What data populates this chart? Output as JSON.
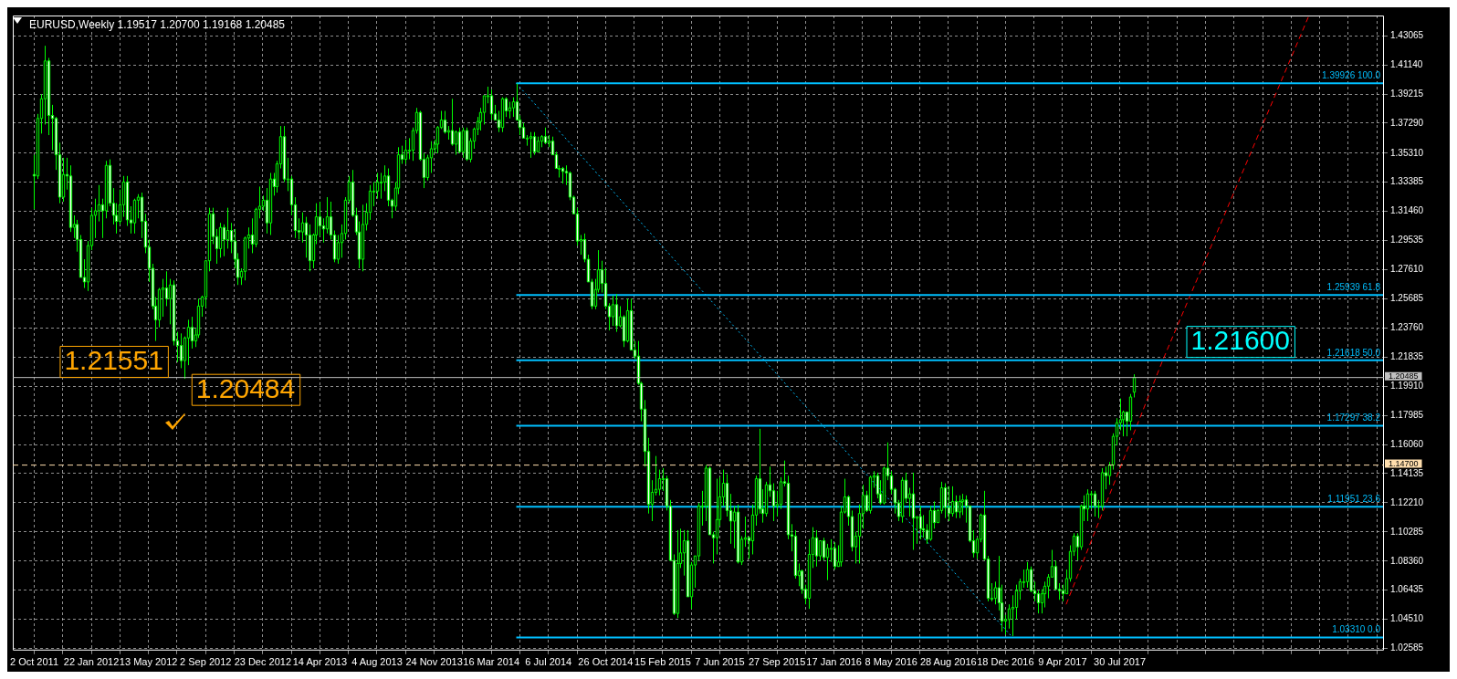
{
  "chart_data": {
    "type": "candlestick",
    "title": "EURUSD,Weekly 1.19517 1.20700 1.19168 1.20485",
    "xlim": [
      "2011-08-21",
      "2018-12-30"
    ],
    "ylim": [
      1.0245,
      1.444
    ],
    "yticks": [
      {
        "value": 1.02585,
        "label": "1.02585"
      },
      {
        "value": 1.0451,
        "label": "1.04510"
      },
      {
        "value": 1.06435,
        "label": "1.06435"
      },
      {
        "value": 1.0836,
        "label": "1.08360"
      },
      {
        "value": 1.10285,
        "label": "1.10285"
      },
      {
        "value": 1.1221,
        "label": "1.12210"
      },
      {
        "value": 1.14135,
        "label": "1.14135"
      },
      {
        "value": 1.1606,
        "label": "1.16060"
      },
      {
        "value": 1.17985,
        "label": "1.17985"
      },
      {
        "value": 1.1991,
        "label": "1.19910"
      },
      {
        "value": 1.21835,
        "label": "1.21835"
      },
      {
        "value": 1.2376,
        "label": "1.23760"
      },
      {
        "value": 1.25685,
        "label": "1.25685"
      },
      {
        "value": 1.2761,
        "label": "1.27610"
      },
      {
        "value": 1.29535,
        "label": "1.29535"
      },
      {
        "value": 1.3146,
        "label": "1.31460"
      },
      {
        "value": 1.33385,
        "label": "1.33385"
      },
      {
        "value": 1.3531,
        "label": "1.35310"
      },
      {
        "value": 1.3729,
        "label": "1.37290"
      },
      {
        "value": 1.39215,
        "label": "1.39215"
      },
      {
        "value": 1.4114,
        "label": "1.41140"
      },
      {
        "value": 1.43065,
        "label": "1.43065"
      }
    ],
    "xticks": [
      {
        "value": "2011-10-02",
        "label": "2 Oct 2011"
      },
      {
        "value": "2011-11-27",
        "label": null
      },
      {
        "value": "2012-01-22",
        "label": "22 Jan 2012"
      },
      {
        "value": "2012-03-18",
        "label": null
      },
      {
        "value": "2012-05-13",
        "label": "13 May 2012"
      },
      {
        "value": "2012-07-08",
        "label": null
      },
      {
        "value": "2012-09-02",
        "label": "2 Sep 2012"
      },
      {
        "value": "2012-10-28",
        "label": null
      },
      {
        "value": "2012-12-23",
        "label": "23 Dec 2012"
      },
      {
        "value": "2013-02-17",
        "label": null
      },
      {
        "value": "2013-04-14",
        "label": "14 Apr 2013"
      },
      {
        "value": "2013-06-09",
        "label": null
      },
      {
        "value": "2013-08-04",
        "label": "4 Aug 2013"
      },
      {
        "value": "2013-09-29",
        "label": null
      },
      {
        "value": "2013-11-24",
        "label": "24 Nov 2013"
      },
      {
        "value": "2014-01-19",
        "label": null
      },
      {
        "value": "2014-03-16",
        "label": "16 Mar 2014"
      },
      {
        "value": "2014-05-11",
        "label": null
      },
      {
        "value": "2014-07-06",
        "label": "6 Jul 2014"
      },
      {
        "value": "2014-08-31",
        "label": null
      },
      {
        "value": "2014-10-26",
        "label": "26 Oct 2014"
      },
      {
        "value": "2014-12-21",
        "label": null
      },
      {
        "value": "2015-02-15",
        "label": "15 Feb 2015"
      },
      {
        "value": "2015-04-12",
        "label": null
      },
      {
        "value": "2015-06-07",
        "label": "7 Jun 2015"
      },
      {
        "value": "2015-08-02",
        "label": null
      },
      {
        "value": "2015-09-27",
        "label": "27 Sep 2015"
      },
      {
        "value": "2015-11-22",
        "label": null
      },
      {
        "value": "2016-01-17",
        "label": "17 Jan 2016"
      },
      {
        "value": "2016-03-13",
        "label": null
      },
      {
        "value": "2016-05-08",
        "label": "8 May 2016"
      },
      {
        "value": "2016-07-03",
        "label": null
      },
      {
        "value": "2016-08-28",
        "label": "28 Aug 2016"
      },
      {
        "value": "2016-10-23",
        "label": null
      },
      {
        "value": "2016-12-18",
        "label": "18 Dec 2016"
      },
      {
        "value": "2017-02-12",
        "label": null
      },
      {
        "value": "2017-04-09",
        "label": "9 Apr 2017"
      },
      {
        "value": "2017-06-04",
        "label": null
      },
      {
        "value": "2017-07-30",
        "label": "30 Jul 2017"
      },
      {
        "value": "2017-09-24",
        "label": null
      },
      {
        "value": "2017-11-19",
        "label": null
      },
      {
        "value": "2018-01-14",
        "label": null
      },
      {
        "value": "2018-03-11",
        "label": null
      },
      {
        "value": "2018-05-06",
        "label": null
      },
      {
        "value": "2018-07-01",
        "label": null
      },
      {
        "value": "2018-08-26",
        "label": null
      },
      {
        "value": "2018-10-21",
        "label": null
      },
      {
        "value": "2018-12-16",
        "label": null
      }
    ],
    "grid": true,
    "x": [
      "2011-10-02",
      "2011-10-09",
      "2011-10-16",
      "2011-10-23",
      "2011-10-30",
      "2011-11-06",
      "2011-11-13",
      "2011-11-20",
      "2011-11-27",
      "2011-12-04",
      "2011-12-11",
      "2011-12-18",
      "2011-12-25",
      "2012-01-01",
      "2012-01-08",
      "2012-01-15",
      "2012-01-22",
      "2012-01-29",
      "2012-02-05",
      "2012-02-12",
      "2012-02-19",
      "2012-02-26",
      "2012-03-04",
      "2012-03-11",
      "2012-03-18",
      "2012-03-25",
      "2012-04-01",
      "2012-04-08",
      "2012-04-15",
      "2012-04-22",
      "2012-04-29",
      "2012-05-06",
      "2012-05-13",
      "2012-05-20",
      "2012-05-27",
      "2012-06-03",
      "2012-06-10",
      "2012-06-17",
      "2012-06-24",
      "2012-07-01",
      "2012-07-08",
      "2012-07-15",
      "2012-07-22",
      "2012-07-29",
      "2012-08-05",
      "2012-08-12",
      "2012-08-19",
      "2012-08-26",
      "2012-09-02",
      "2012-09-09",
      "2012-09-16",
      "2012-09-23",
      "2012-09-30",
      "2012-10-07",
      "2012-10-14",
      "2012-10-21",
      "2012-10-28",
      "2012-11-04",
      "2012-11-11",
      "2012-11-18",
      "2012-11-25",
      "2012-12-02",
      "2012-12-09",
      "2012-12-16",
      "2012-12-23",
      "2012-12-30",
      "2013-01-06",
      "2013-01-13",
      "2013-01-20",
      "2013-01-27",
      "2013-02-03",
      "2013-02-10",
      "2013-02-17",
      "2013-02-24",
      "2013-03-03",
      "2013-03-10",
      "2013-03-17",
      "2013-03-24",
      "2013-03-31",
      "2013-04-07",
      "2013-04-14",
      "2013-04-21",
      "2013-04-28",
      "2013-05-05",
      "2013-05-12",
      "2013-05-19",
      "2013-05-26",
      "2013-06-02",
      "2013-06-09",
      "2013-06-16",
      "2013-06-23",
      "2013-06-30",
      "2013-07-07",
      "2013-07-14",
      "2013-07-21",
      "2013-07-28",
      "2013-08-04",
      "2013-08-11",
      "2013-08-18",
      "2013-08-25",
      "2013-09-01",
      "2013-09-08",
      "2013-09-15",
      "2013-09-22",
      "2013-09-29",
      "2013-10-06",
      "2013-10-13",
      "2013-10-20",
      "2013-10-27",
      "2013-11-03",
      "2013-11-10",
      "2013-11-17",
      "2013-11-24",
      "2013-12-01",
      "2013-12-08",
      "2013-12-15",
      "2013-12-22",
      "2013-12-29",
      "2014-01-05",
      "2014-01-12",
      "2014-01-19",
      "2014-01-26",
      "2014-02-02",
      "2014-02-09",
      "2014-02-16",
      "2014-02-23",
      "2014-03-02",
      "2014-03-09",
      "2014-03-16",
      "2014-03-23",
      "2014-03-30",
      "2014-04-06",
      "2014-04-13",
      "2014-04-20",
      "2014-04-27",
      "2014-05-04",
      "2014-05-11",
      "2014-05-18",
      "2014-05-25",
      "2014-06-01",
      "2014-06-08",
      "2014-06-15",
      "2014-06-22",
      "2014-06-29",
      "2014-07-06",
      "2014-07-13",
      "2014-07-20",
      "2014-07-27",
      "2014-08-03",
      "2014-08-10",
      "2014-08-17",
      "2014-08-24",
      "2014-08-31",
      "2014-09-07",
      "2014-09-14",
      "2014-09-21",
      "2014-09-28",
      "2014-10-05",
      "2014-10-12",
      "2014-10-19",
      "2014-10-26",
      "2014-11-02",
      "2014-11-09",
      "2014-11-16",
      "2014-11-23",
      "2014-11-30",
      "2014-12-07",
      "2014-12-14",
      "2014-12-21",
      "2014-12-28",
      "2015-01-04",
      "2015-01-11",
      "2015-01-18",
      "2015-01-25",
      "2015-02-01",
      "2015-02-08",
      "2015-02-15",
      "2015-02-22",
      "2015-03-01",
      "2015-03-08",
      "2015-03-15",
      "2015-03-22",
      "2015-03-29",
      "2015-04-05",
      "2015-04-12",
      "2015-04-19",
      "2015-04-26",
      "2015-05-03",
      "2015-05-10",
      "2015-05-17",
      "2015-05-24",
      "2015-05-31",
      "2015-06-07",
      "2015-06-14",
      "2015-06-21",
      "2015-06-28",
      "2015-07-05",
      "2015-07-12",
      "2015-07-19",
      "2015-07-26",
      "2015-08-02",
      "2015-08-09",
      "2015-08-16",
      "2015-08-23",
      "2015-08-30",
      "2015-09-06",
      "2015-09-13",
      "2015-09-20",
      "2015-09-27",
      "2015-10-04",
      "2015-10-11",
      "2015-10-18",
      "2015-10-25",
      "2015-11-01",
      "2015-11-08",
      "2015-11-15",
      "2015-11-22",
      "2015-11-29",
      "2015-12-06",
      "2015-12-13",
      "2015-12-20",
      "2015-12-27",
      "2016-01-03",
      "2016-01-10",
      "2016-01-17",
      "2016-01-24",
      "2016-01-31",
      "2016-02-07",
      "2016-02-14",
      "2016-02-21",
      "2016-02-28",
      "2016-03-06",
      "2016-03-13",
      "2016-03-20",
      "2016-03-27",
      "2016-04-03",
      "2016-04-10",
      "2016-04-17",
      "2016-04-24",
      "2016-05-01",
      "2016-05-08",
      "2016-05-15",
      "2016-05-22",
      "2016-05-29",
      "2016-06-05",
      "2016-06-12",
      "2016-06-19",
      "2016-06-26",
      "2016-07-03",
      "2016-07-10",
      "2016-07-17",
      "2016-07-24",
      "2016-07-31",
      "2016-08-07",
      "2016-08-14",
      "2016-08-21",
      "2016-08-28",
      "2016-09-04",
      "2016-09-11",
      "2016-09-18",
      "2016-09-25",
      "2016-10-02",
      "2016-10-09",
      "2016-10-16",
      "2016-10-23",
      "2016-10-30",
      "2016-11-06",
      "2016-11-13",
      "2016-11-20",
      "2016-11-27",
      "2016-12-04",
      "2016-12-11",
      "2016-12-18",
      "2016-12-25",
      "2017-01-01",
      "2017-01-08",
      "2017-01-15",
      "2017-01-22",
      "2017-01-29",
      "2017-02-05",
      "2017-02-12",
      "2017-02-19",
      "2017-02-26",
      "2017-03-05",
      "2017-03-12",
      "2017-03-19",
      "2017-03-26",
      "2017-04-02",
      "2017-04-09",
      "2017-04-16",
      "2017-04-23",
      "2017-04-30",
      "2017-05-07",
      "2017-05-14",
      "2017-05-21",
      "2017-05-28",
      "2017-06-04",
      "2017-06-11",
      "2017-06-18",
      "2017-06-25",
      "2017-07-02",
      "2017-07-09",
      "2017-07-16",
      "2017-07-23",
      "2017-07-30",
      "2017-08-06",
      "2017-08-13",
      "2017-08-20",
      "2017-08-27"
    ],
    "ohlc": [
      [
        1.339,
        1.352,
        1.316,
        1.338
      ],
      [
        1.338,
        1.379,
        1.336,
        1.376
      ],
      [
        1.376,
        1.392,
        1.366,
        1.389
      ],
      [
        1.389,
        1.424,
        1.372,
        1.414
      ],
      [
        1.414,
        1.416,
        1.365,
        1.378
      ],
      [
        1.378,
        1.385,
        1.355,
        1.376
      ],
      [
        1.376,
        1.377,
        1.342,
        1.352
      ],
      [
        1.352,
        1.36,
        1.32,
        1.324
      ],
      [
        1.324,
        1.35,
        1.321,
        1.339
      ],
      [
        1.339,
        1.35,
        1.329,
        1.338
      ],
      [
        1.338,
        1.345,
        1.301,
        1.304
      ],
      [
        1.304,
        1.312,
        1.297,
        1.306
      ],
      [
        1.306,
        1.309,
        1.288,
        1.296
      ],
      [
        1.296,
        1.299,
        1.271,
        1.271
      ],
      [
        1.271,
        1.283,
        1.264,
        1.268
      ],
      [
        1.268,
        1.295,
        1.262,
        1.292
      ],
      [
        1.292,
        1.317,
        1.289,
        1.312
      ],
      [
        1.312,
        1.323,
        1.297,
        1.315
      ],
      [
        1.315,
        1.332,
        1.308,
        1.319
      ],
      [
        1.319,
        1.323,
        1.297,
        1.315
      ],
      [
        1.315,
        1.348,
        1.31,
        1.345
      ],
      [
        1.345,
        1.349,
        1.318,
        1.32
      ],
      [
        1.32,
        1.33,
        1.306,
        1.312
      ],
      [
        1.312,
        1.32,
        1.3,
        1.308
      ],
      [
        1.308,
        1.329,
        1.306,
        1.319
      ],
      [
        1.319,
        1.338,
        1.311,
        1.334
      ],
      [
        1.334,
        1.338,
        1.305,
        1.309
      ],
      [
        1.309,
        1.318,
        1.3,
        1.307
      ],
      [
        1.307,
        1.323,
        1.3,
        1.322
      ],
      [
        1.322,
        1.326,
        1.31,
        1.324
      ],
      [
        1.324,
        1.327,
        1.297,
        1.308
      ],
      [
        1.308,
        1.313,
        1.287,
        1.291
      ],
      [
        1.291,
        1.296,
        1.268,
        1.277
      ],
      [
        1.277,
        1.28,
        1.25,
        1.252
      ],
      [
        1.252,
        1.258,
        1.229,
        1.243
      ],
      [
        1.243,
        1.264,
        1.238,
        1.263
      ],
      [
        1.263,
        1.27,
        1.245,
        1.264
      ],
      [
        1.264,
        1.275,
        1.252,
        1.257
      ],
      [
        1.257,
        1.27,
        1.24,
        1.266
      ],
      [
        1.266,
        1.269,
        1.226,
        1.229
      ],
      [
        1.229,
        1.235,
        1.215,
        1.226
      ],
      [
        1.226,
        1.234,
        1.211,
        1.216
      ],
      [
        1.216,
        1.232,
        1.204,
        1.231
      ],
      [
        1.231,
        1.243,
        1.213,
        1.238
      ],
      [
        1.238,
        1.245,
        1.224,
        1.229
      ],
      [
        1.229,
        1.237,
        1.225,
        1.233
      ],
      [
        1.233,
        1.257,
        1.231,
        1.252
      ],
      [
        1.252,
        1.259,
        1.245,
        1.258
      ],
      [
        1.258,
        1.282,
        1.251,
        1.282
      ],
      [
        1.282,
        1.317,
        1.275,
        1.313
      ],
      [
        1.313,
        1.317,
        1.293,
        1.298
      ],
      [
        1.298,
        1.303,
        1.28,
        1.29
      ],
      [
        1.29,
        1.307,
        1.284,
        1.304
      ],
      [
        1.304,
        1.306,
        1.285,
        1.296
      ],
      [
        1.296,
        1.317,
        1.29,
        1.302
      ],
      [
        1.302,
        1.307,
        1.287,
        1.295
      ],
      [
        1.295,
        1.303,
        1.277,
        1.283
      ],
      [
        1.283,
        1.287,
        1.266,
        1.271
      ],
      [
        1.271,
        1.277,
        1.266,
        1.275
      ],
      [
        1.275,
        1.298,
        1.269,
        1.297
      ],
      [
        1.297,
        1.304,
        1.29,
        1.299
      ],
      [
        1.299,
        1.31,
        1.287,
        1.293
      ],
      [
        1.293,
        1.317,
        1.291,
        1.316
      ],
      [
        1.316,
        1.331,
        1.31,
        1.318
      ],
      [
        1.318,
        1.325,
        1.315,
        1.322
      ],
      [
        1.322,
        1.33,
        1.3,
        1.307
      ],
      [
        1.307,
        1.34,
        1.299,
        1.336
      ],
      [
        1.336,
        1.34,
        1.325,
        1.331
      ],
      [
        1.331,
        1.348,
        1.327,
        1.346
      ],
      [
        1.346,
        1.371,
        1.343,
        1.364
      ],
      [
        1.364,
        1.371,
        1.334,
        1.336
      ],
      [
        1.336,
        1.35,
        1.328,
        1.336
      ],
      [
        1.336,
        1.338,
        1.312,
        1.319
      ],
      [
        1.319,
        1.324,
        1.297,
        1.302
      ],
      [
        1.302,
        1.31,
        1.296,
        1.301
      ],
      [
        1.301,
        1.314,
        1.294,
        1.307
      ],
      [
        1.307,
        1.311,
        1.284,
        1.299
      ],
      [
        1.299,
        1.306,
        1.275,
        1.282
      ],
      [
        1.282,
        1.3,
        1.277,
        1.299
      ],
      [
        1.299,
        1.32,
        1.293,
        1.311
      ],
      [
        1.311,
        1.321,
        1.298,
        1.305
      ],
      [
        1.305,
        1.31,
        1.294,
        1.303
      ],
      [
        1.303,
        1.324,
        1.3,
        1.311
      ],
      [
        1.311,
        1.321,
        1.296,
        1.299
      ],
      [
        1.299,
        1.302,
        1.281,
        1.283
      ],
      [
        1.283,
        1.299,
        1.28,
        1.294
      ],
      [
        1.294,
        1.306,
        1.284,
        1.3
      ],
      [
        1.3,
        1.324,
        1.296,
        1.322
      ],
      [
        1.322,
        1.338,
        1.32,
        1.334
      ],
      [
        1.334,
        1.342,
        1.311,
        1.312
      ],
      [
        1.312,
        1.317,
        1.299,
        1.301
      ],
      [
        1.301,
        1.308,
        1.277,
        1.283
      ],
      [
        1.283,
        1.319,
        1.275,
        1.306
      ],
      [
        1.306,
        1.32,
        1.302,
        1.314
      ],
      [
        1.314,
        1.332,
        1.309,
        1.328
      ],
      [
        1.328,
        1.334,
        1.318,
        1.328
      ],
      [
        1.328,
        1.34,
        1.323,
        1.334
      ],
      [
        1.334,
        1.34,
        1.323,
        1.334
      ],
      [
        1.334,
        1.345,
        1.328,
        1.338
      ],
      [
        1.338,
        1.343,
        1.318,
        1.322
      ],
      [
        1.322,
        1.323,
        1.31,
        1.318
      ],
      [
        1.318,
        1.334,
        1.315,
        1.33
      ],
      [
        1.33,
        1.357,
        1.326,
        1.352
      ],
      [
        1.352,
        1.358,
        1.346,
        1.349
      ],
      [
        1.349,
        1.362,
        1.346,
        1.355
      ],
      [
        1.355,
        1.363,
        1.349,
        1.355
      ],
      [
        1.355,
        1.37,
        1.348,
        1.368
      ],
      [
        1.368,
        1.383,
        1.366,
        1.38
      ],
      [
        1.38,
        1.381,
        1.348,
        1.349
      ],
      [
        1.349,
        1.353,
        1.33,
        1.337
      ],
      [
        1.337,
        1.352,
        1.335,
        1.35
      ],
      [
        1.35,
        1.361,
        1.34,
        1.356
      ],
      [
        1.356,
        1.362,
        1.353,
        1.359
      ],
      [
        1.359,
        1.371,
        1.353,
        1.37
      ],
      [
        1.37,
        1.381,
        1.369,
        1.375
      ],
      [
        1.375,
        1.381,
        1.366,
        1.367
      ],
      [
        1.367,
        1.371,
        1.362,
        1.368
      ],
      [
        1.368,
        1.389,
        1.358,
        1.359
      ],
      [
        1.359,
        1.368,
        1.352,
        1.367
      ],
      [
        1.367,
        1.37,
        1.353,
        1.354
      ],
      [
        1.354,
        1.37,
        1.35,
        1.368
      ],
      [
        1.368,
        1.37,
        1.348,
        1.349
      ],
      [
        1.349,
        1.363,
        1.347,
        1.361
      ],
      [
        1.361,
        1.37,
        1.356,
        1.369
      ],
      [
        1.369,
        1.377,
        1.365,
        1.374
      ],
      [
        1.374,
        1.383,
        1.368,
        1.38
      ],
      [
        1.38,
        1.391,
        1.372,
        1.391
      ],
      [
        1.391,
        1.397,
        1.386,
        1.391
      ],
      [
        1.391,
        1.395,
        1.375,
        1.379
      ],
      [
        1.379,
        1.385,
        1.375,
        1.375
      ],
      [
        1.375,
        1.381,
        1.367,
        1.37
      ],
      [
        1.37,
        1.39,
        1.367,
        1.389
      ],
      [
        1.389,
        1.39,
        1.377,
        1.381
      ],
      [
        1.381,
        1.387,
        1.376,
        1.383
      ],
      [
        1.383,
        1.39,
        1.377,
        1.387
      ],
      [
        1.387,
        1.399,
        1.375,
        1.375
      ],
      [
        1.375,
        1.378,
        1.365,
        1.37
      ],
      [
        1.37,
        1.373,
        1.363,
        1.363
      ],
      [
        1.363,
        1.365,
        1.358,
        1.363
      ],
      [
        1.363,
        1.367,
        1.35,
        1.364
      ],
      [
        1.364,
        1.367,
        1.352,
        1.354
      ],
      [
        1.354,
        1.364,
        1.354,
        1.361
      ],
      [
        1.361,
        1.365,
        1.357,
        1.364
      ],
      [
        1.364,
        1.37,
        1.359,
        1.36
      ],
      [
        1.36,
        1.365,
        1.357,
        1.361
      ],
      [
        1.361,
        1.364,
        1.352,
        1.352
      ],
      [
        1.352,
        1.354,
        1.343,
        1.343
      ],
      [
        1.343,
        1.345,
        1.337,
        1.343
      ],
      [
        1.343,
        1.344,
        1.333,
        1.341
      ],
      [
        1.341,
        1.345,
        1.332,
        1.34
      ],
      [
        1.34,
        1.341,
        1.322,
        1.324
      ],
      [
        1.324,
        1.325,
        1.313,
        1.313
      ],
      [
        1.313,
        1.317,
        1.292,
        1.295
      ],
      [
        1.295,
        1.299,
        1.286,
        1.296
      ],
      [
        1.296,
        1.3,
        1.281,
        1.283
      ],
      [
        1.283,
        1.286,
        1.268,
        1.268
      ],
      [
        1.268,
        1.27,
        1.25,
        1.252
      ],
      [
        1.252,
        1.27,
        1.25,
        1.263
      ],
      [
        1.263,
        1.289,
        1.261,
        1.276
      ],
      [
        1.276,
        1.282,
        1.261,
        1.267
      ],
      [
        1.267,
        1.277,
        1.25,
        1.252
      ],
      [
        1.252,
        1.254,
        1.236,
        1.245
      ],
      [
        1.245,
        1.259,
        1.239,
        1.253
      ],
      [
        1.253,
        1.26,
        1.235,
        1.239
      ],
      [
        1.239,
        1.252,
        1.238,
        1.245
      ],
      [
        1.245,
        1.246,
        1.225,
        1.229
      ],
      [
        1.229,
        1.257,
        1.228,
        1.249
      ],
      [
        1.249,
        1.257,
        1.223,
        1.223
      ],
      [
        1.223,
        1.229,
        1.217,
        1.219
      ],
      [
        1.219,
        1.229,
        1.2,
        1.201
      ],
      [
        1.201,
        1.202,
        1.176,
        1.184
      ],
      [
        1.184,
        1.19,
        1.146,
        1.156
      ],
      [
        1.156,
        1.165,
        1.115,
        1.121
      ],
      [
        1.121,
        1.137,
        1.11,
        1.129
      ],
      [
        1.129,
        1.153,
        1.127,
        1.131
      ],
      [
        1.131,
        1.144,
        1.127,
        1.138
      ],
      [
        1.138,
        1.145,
        1.13,
        1.138
      ],
      [
        1.138,
        1.14,
        1.117,
        1.12
      ],
      [
        1.12,
        1.124,
        1.084,
        1.084
      ],
      [
        1.084,
        1.088,
        1.048,
        1.049
      ],
      [
        1.049,
        1.104,
        1.046,
        1.082
      ],
      [
        1.082,
        1.105,
        1.079,
        1.089
      ],
      [
        1.089,
        1.104,
        1.074,
        1.097
      ],
      [
        1.097,
        1.104,
        1.06,
        1.06
      ],
      [
        1.06,
        1.083,
        1.052,
        1.081
      ],
      [
        1.081,
        1.087,
        1.066,
        1.087
      ],
      [
        1.087,
        1.122,
        1.084,
        1.12
      ],
      [
        1.12,
        1.13,
        1.107,
        1.12
      ],
      [
        1.12,
        1.147,
        1.11,
        1.145
      ],
      [
        1.145,
        1.146,
        1.101,
        1.101
      ],
      [
        1.101,
        1.103,
        1.082,
        1.099
      ],
      [
        1.099,
        1.138,
        1.088,
        1.111
      ],
      [
        1.111,
        1.139,
        1.107,
        1.126
      ],
      [
        1.126,
        1.144,
        1.12,
        1.135
      ],
      [
        1.135,
        1.141,
        1.113,
        1.117
      ],
      [
        1.117,
        1.128,
        1.095,
        1.11
      ],
      [
        1.11,
        1.12,
        1.092,
        1.116
      ],
      [
        1.116,
        1.121,
        1.082,
        1.083
      ],
      [
        1.083,
        1.1,
        1.081,
        1.098
      ],
      [
        1.098,
        1.113,
        1.093,
        1.099
      ],
      [
        1.099,
        1.1,
        1.085,
        1.097
      ],
      [
        1.097,
        1.121,
        1.088,
        1.114
      ],
      [
        1.114,
        1.14,
        1.107,
        1.138
      ],
      [
        1.138,
        1.171,
        1.115,
        1.118
      ],
      [
        1.118,
        1.131,
        1.109,
        1.115
      ],
      [
        1.115,
        1.136,
        1.113,
        1.134
      ],
      [
        1.134,
        1.146,
        1.126,
        1.13
      ],
      [
        1.13,
        1.135,
        1.11,
        1.12
      ],
      [
        1.12,
        1.13,
        1.113,
        1.121
      ],
      [
        1.121,
        1.139,
        1.118,
        1.136
      ],
      [
        1.136,
        1.15,
        1.133,
        1.135
      ],
      [
        1.135,
        1.14,
        1.098,
        1.101
      ],
      [
        1.101,
        1.108,
        1.09,
        1.1
      ],
      [
        1.1,
        1.104,
        1.072,
        1.074
      ],
      [
        1.074,
        1.082,
        1.067,
        1.077
      ],
      [
        1.077,
        1.078,
        1.062,
        1.065
      ],
      [
        1.065,
        1.068,
        1.055,
        1.059
      ],
      [
        1.059,
        1.098,
        1.052,
        1.088
      ],
      [
        1.088,
        1.106,
        1.079,
        1.099
      ],
      [
        1.099,
        1.104,
        1.08,
        1.087
      ],
      [
        1.087,
        1.097,
        1.084,
        1.097
      ],
      [
        1.097,
        1.099,
        1.084,
        1.086
      ],
      [
        1.086,
        1.095,
        1.071,
        1.092
      ],
      [
        1.092,
        1.098,
        1.083,
        1.092
      ],
      [
        1.092,
        1.096,
        1.078,
        1.08
      ],
      [
        1.08,
        1.094,
        1.08,
        1.083
      ],
      [
        1.083,
        1.12,
        1.08,
        1.116
      ],
      [
        1.116,
        1.138,
        1.115,
        1.126
      ],
      [
        1.126,
        1.127,
        1.107,
        1.113
      ],
      [
        1.113,
        1.117,
        1.09,
        1.093
      ],
      [
        1.093,
        1.103,
        1.082,
        1.1
      ],
      [
        1.1,
        1.121,
        1.082,
        1.115
      ],
      [
        1.115,
        1.134,
        1.105,
        1.127
      ],
      [
        1.127,
        1.13,
        1.116,
        1.117
      ],
      [
        1.117,
        1.14,
        1.115,
        1.139
      ],
      [
        1.139,
        1.143,
        1.132,
        1.14
      ],
      [
        1.14,
        1.142,
        1.125,
        1.128
      ],
      [
        1.128,
        1.137,
        1.121,
        1.122
      ],
      [
        1.122,
        1.146,
        1.121,
        1.145
      ],
      [
        1.145,
        1.162,
        1.137,
        1.14
      ],
      [
        1.14,
        1.143,
        1.128,
        1.131
      ],
      [
        1.131,
        1.132,
        1.115,
        1.122
      ],
      [
        1.122,
        1.124,
        1.11,
        1.113
      ],
      [
        1.113,
        1.139,
        1.109,
        1.137
      ],
      [
        1.137,
        1.142,
        1.122,
        1.125
      ],
      [
        1.125,
        1.132,
        1.113,
        1.128
      ],
      [
        1.128,
        1.142,
        1.091,
        1.112
      ],
      [
        1.112,
        1.113,
        1.095,
        1.113
      ],
      [
        1.113,
        1.12,
        1.098,
        1.105
      ],
      [
        1.105,
        1.114,
        1.099,
        1.104
      ],
      [
        1.104,
        1.108,
        1.095,
        1.098
      ],
      [
        1.098,
        1.12,
        1.097,
        1.117
      ],
      [
        1.117,
        1.123,
        1.105,
        1.109
      ],
      [
        1.109,
        1.118,
        1.109,
        1.117
      ],
      [
        1.117,
        1.136,
        1.115,
        1.132
      ],
      [
        1.132,
        1.135,
        1.112,
        1.119
      ],
      [
        1.119,
        1.133,
        1.11,
        1.115
      ],
      [
        1.115,
        1.133,
        1.113,
        1.123
      ],
      [
        1.123,
        1.127,
        1.112,
        1.116
      ],
      [
        1.116,
        1.127,
        1.112,
        1.123
      ],
      [
        1.123,
        1.128,
        1.114,
        1.124
      ],
      [
        1.124,
        1.127,
        1.109,
        1.12
      ],
      [
        1.12,
        1.12,
        1.096,
        1.097
      ],
      [
        1.097,
        1.104,
        1.086,
        1.089
      ],
      [
        1.089,
        1.099,
        1.085,
        1.098
      ],
      [
        1.098,
        1.115,
        1.096,
        1.114
      ],
      [
        1.114,
        1.13,
        1.084,
        1.085
      ],
      [
        1.085,
        1.087,
        1.057,
        1.059
      ],
      [
        1.059,
        1.069,
        1.057,
        1.059
      ],
      [
        1.059,
        1.07,
        1.055,
        1.066
      ],
      [
        1.066,
        1.087,
        1.051,
        1.056
      ],
      [
        1.056,
        1.068,
        1.037,
        1.044
      ],
      [
        1.044,
        1.048,
        1.035,
        1.045
      ],
      [
        1.045,
        1.055,
        1.039,
        1.052
      ],
      [
        1.052,
        1.061,
        1.034,
        1.053
      ],
      [
        1.053,
        1.068,
        1.045,
        1.064
      ],
      [
        1.064,
        1.072,
        1.058,
        1.07
      ],
      [
        1.07,
        1.078,
        1.066,
        1.07
      ],
      [
        1.07,
        1.083,
        1.066,
        1.078
      ],
      [
        1.078,
        1.08,
        1.063,
        1.064
      ],
      [
        1.064,
        1.07,
        1.057,
        1.062
      ],
      [
        1.062,
        1.064,
        1.049,
        1.056
      ],
      [
        1.056,
        1.065,
        1.049,
        1.062
      ],
      [
        1.062,
        1.07,
        1.053,
        1.067
      ],
      [
        1.067,
        1.075,
        1.059,
        1.073
      ],
      [
        1.073,
        1.091,
        1.073,
        1.08
      ],
      [
        1.08,
        1.084,
        1.065,
        1.065
      ],
      [
        1.065,
        1.069,
        1.058,
        1.064
      ],
      [
        1.064,
        1.068,
        1.057,
        1.062
      ],
      [
        1.062,
        1.078,
        1.062,
        1.072
      ],
      [
        1.072,
        1.094,
        1.07,
        1.09
      ],
      [
        1.09,
        1.102,
        1.087,
        1.1
      ],
      [
        1.1,
        1.102,
        1.084,
        1.093
      ],
      [
        1.093,
        1.121,
        1.091,
        1.12
      ],
      [
        1.12,
        1.127,
        1.11,
        1.118
      ],
      [
        1.118,
        1.131,
        1.11,
        1.128
      ],
      [
        1.128,
        1.13,
        1.118,
        1.128
      ],
      [
        1.128,
        1.13,
        1.113,
        1.12
      ],
      [
        1.12,
        1.124,
        1.112,
        1.12
      ],
      [
        1.12,
        1.145,
        1.117,
        1.142
      ],
      [
        1.142,
        1.146,
        1.131,
        1.14
      ],
      [
        1.14,
        1.149,
        1.134,
        1.147
      ],
      [
        1.147,
        1.168,
        1.144,
        1.166
      ],
      [
        1.166,
        1.178,
        1.16,
        1.175
      ],
      [
        1.175,
        1.191,
        1.17,
        1.177
      ],
      [
        1.177,
        1.183,
        1.166,
        1.182
      ],
      [
        1.182,
        1.182,
        1.166,
        1.176
      ],
      [
        1.176,
        1.194,
        1.17,
        1.192
      ],
      [
        1.19517,
        1.207,
        1.19168,
        1.20485
      ]
    ],
    "series": [
      {
        "type": "line",
        "name": "1.39926 100.0",
        "color": "#00bfff",
        "x": [
          "2014-05-04",
          "2018-12-30"
        ],
        "values": [
          1.39926,
          1.39926
        ]
      },
      {
        "type": "line",
        "name": "1.25939 61.8",
        "color": "#00bfff",
        "x": [
          "2014-05-04",
          "2018-12-30"
        ],
        "values": [
          1.25939,
          1.25939
        ]
      },
      {
        "type": "line",
        "name": "1.21618 50.0",
        "color": "#00bfff",
        "x": [
          "2014-05-04",
          "2018-12-30"
        ],
        "values": [
          1.21618,
          1.21618
        ]
      },
      {
        "type": "line",
        "name": "1.17297 38.2",
        "color": "#00bfff",
        "x": [
          "2014-05-04",
          "2018-12-30"
        ],
        "values": [
          1.17297,
          1.17297
        ]
      },
      {
        "type": "line",
        "name": "1.11951 23.6",
        "color": "#00bfff",
        "x": [
          "2014-05-04",
          "2018-12-30"
        ],
        "values": [
          1.11951,
          1.11951
        ]
      },
      {
        "type": "line",
        "name": "1.03310 0.0",
        "color": "#00bfff",
        "x": [
          "2014-05-04",
          "2018-12-30"
        ],
        "values": [
          1.0331,
          1.0331
        ]
      },
      {
        "type": "line",
        "color": "#00bfff",
        "line_style": "dotted",
        "x": [
          "2014-05-04",
          "2017-01-01"
        ],
        "values": [
          1.39926,
          1.0331
        ]
      },
      {
        "type": "line",
        "color": "#ff0000",
        "line_style": "dashed",
        "x": [
          "2017-04-16",
          "2017-10-22",
          "2018-08-05"
        ],
        "values": [
          1.055,
          1.216,
          1.444
        ]
      }
    ],
    "ref_lines": [
      {
        "axis": "y",
        "value": 1.147,
        "label": "1.14700",
        "color": "#ffdead",
        "line_style": "dashed"
      },
      {
        "axis": "y",
        "value": 1.20485,
        "label": "1.20485",
        "color": "#c0c0c0",
        "line_style": "solid"
      }
    ],
    "annotations": [
      {
        "text": "1.21551",
        "x": "2012-07-15",
        "y": 1.21551
      },
      {
        "text": "1.20484",
        "x": "2012-07-22",
        "y": 1.20484
      },
      {
        "text": "1.21600",
        "x": "2017-10-22",
        "y": 1.216
      }
    ]
  }
}
